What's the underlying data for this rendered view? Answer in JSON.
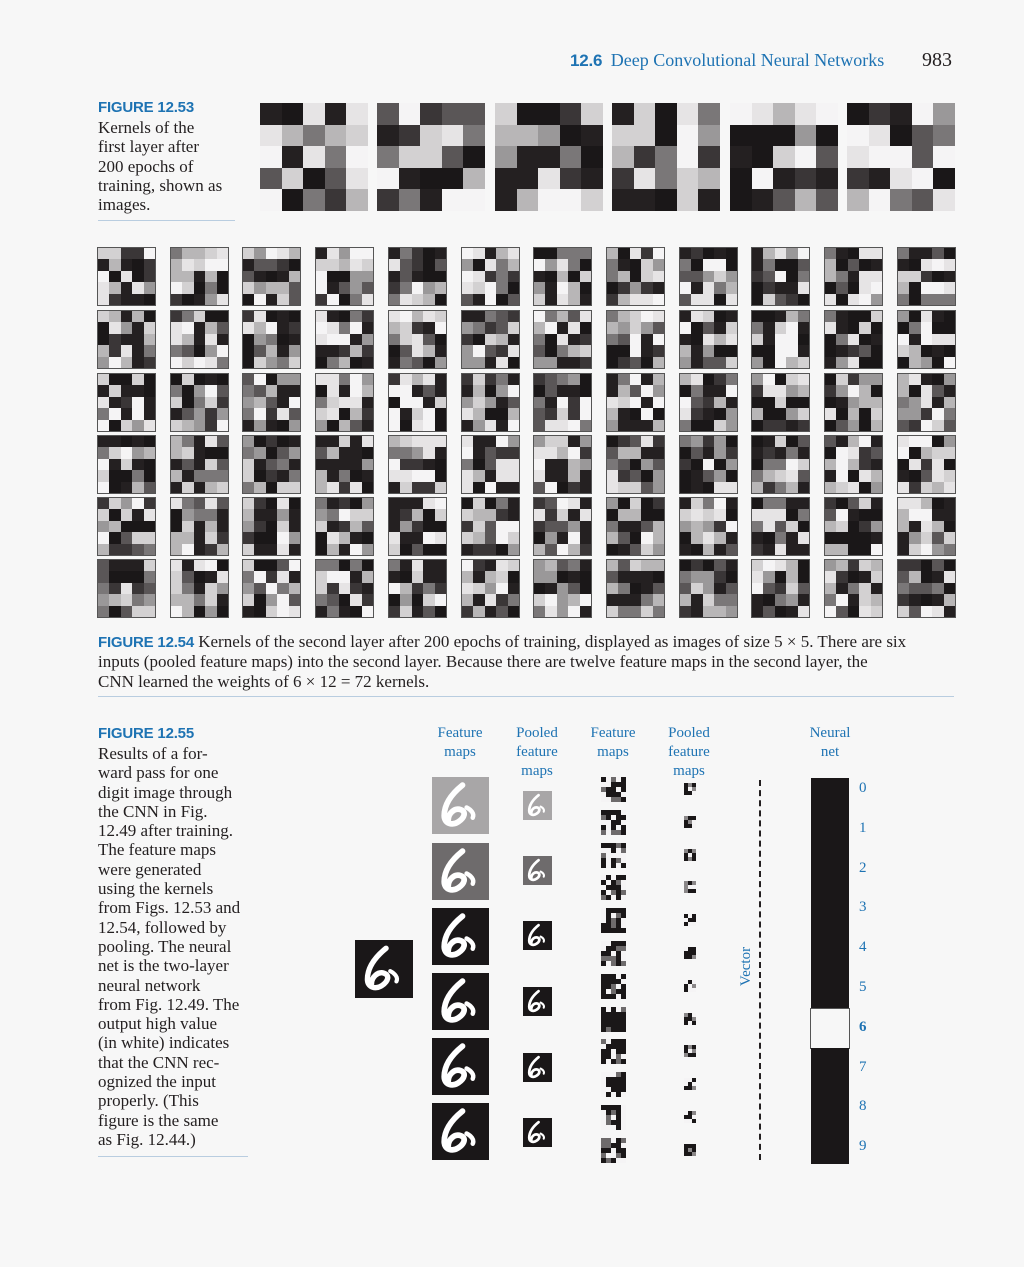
{
  "header": {
    "section_number": "12.6",
    "section_title": "Deep Convolutional Neural Networks",
    "page_number": "983"
  },
  "fig53": {
    "label": "FIGURE 12.53",
    "caption_lines": [
      "Kernels of the",
      "first layer after",
      "200 epochs of",
      "training, shown as",
      "images."
    ]
  },
  "fig54": {
    "label": "FIGURE 12.54",
    "caption_line1": "Kernels of the second layer after 200 epochs of training, displayed as images of size 5 × 5. There are six",
    "caption_line2": "inputs (pooled feature maps) into the second layer. Because there are twelve feature maps in the second layer, the",
    "caption_line3": "CNN learned the weights of 6 × 12 = 72  kernels."
  },
  "fig55": {
    "label": "FIGURE 12.55",
    "caption_lines": [
      "Results of a for-",
      "ward pass for one",
      "digit image through",
      "the CNN in Fig.",
      "12.49 after training.",
      "The feature maps",
      "were generated",
      "using the kernels",
      "from Figs. 12.53 and",
      "12.54, followed by",
      "pooling. The neural",
      "net is the two-layer",
      "neural network",
      "from Fig. 12.49. The",
      "output high value",
      "(in white) indicates",
      "that the CNN rec-",
      "ognized the input",
      "properly. (This",
      "figure is the same",
      "as Fig. 12.44.)"
    ],
    "col_headers": {
      "feature_maps_1": [
        "Feature",
        "maps"
      ],
      "pooled_1": [
        "Pooled",
        "feature",
        "maps"
      ],
      "feature_maps_2": [
        "Feature",
        "maps"
      ],
      "pooled_2": [
        "Pooled",
        "feature",
        "maps"
      ],
      "neural_net": [
        "Neural",
        "net"
      ]
    },
    "vector_label": "Vector",
    "output_classes": [
      "0",
      "1",
      "2",
      "3",
      "4",
      "5",
      "6",
      "7",
      "8",
      "9"
    ],
    "highlighted_class": "6"
  },
  "colors": {
    "accent": "#1e73b3",
    "rule": "#b9cde0",
    "background": "#f7f7f7",
    "dark": "#1a1718"
  }
}
